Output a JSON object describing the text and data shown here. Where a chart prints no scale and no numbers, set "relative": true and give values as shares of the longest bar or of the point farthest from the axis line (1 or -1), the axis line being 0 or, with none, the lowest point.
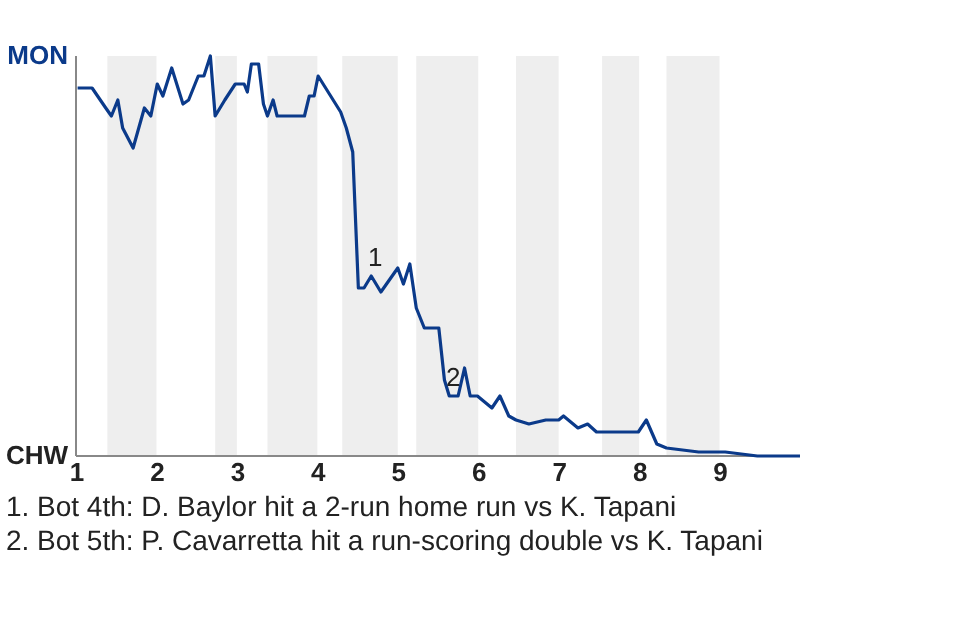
{
  "chart_data": {
    "type": "line",
    "relative": true,
    "xlim": [
      1,
      10
    ],
    "xticks": [
      1,
      2,
      3,
      4,
      5,
      6,
      7,
      8,
      9
    ],
    "marker": "none",
    "line_style": "solid",
    "series": [
      {
        "color": "#0b3a8a",
        "x": [
          1.02,
          1.2,
          1.37,
          1.44,
          1.52,
          1.58,
          1.71,
          1.85,
          1.93,
          2.01,
          2.08,
          2.19,
          2.33,
          2.4,
          2.52,
          2.59,
          2.67,
          2.73,
          2.85,
          2.98,
          3.09,
          3.13,
          3.18,
          3.27,
          3.33,
          3.38,
          3.45,
          3.5,
          3.84,
          3.9,
          3.96,
          4.01,
          4.29,
          4.36,
          4.44,
          4.51,
          4.58,
          4.67,
          4.79,
          5.0,
          5.07,
          5.15,
          5.23,
          5.33,
          5.51,
          5.58,
          5.64,
          5.75,
          5.83,
          5.9,
          5.99,
          6.17,
          6.27,
          6.38,
          6.47,
          6.63,
          6.84,
          7.0,
          7.06,
          7.24,
          7.36,
          7.47,
          7.56,
          7.77,
          7.99,
          8.09,
          8.22,
          8.34,
          8.74,
          8.95,
          9.07,
          9.47,
          10
        ],
        "values": [
          0.92,
          0.92,
          0.87,
          0.85,
          0.89,
          0.82,
          0.77,
          0.87,
          0.85,
          0.93,
          0.9,
          0.97,
          0.88,
          0.89,
          0.95,
          0.95,
          1,
          0.85,
          0.89,
          0.93,
          0.93,
          0.91,
          0.98,
          0.98,
          0.88,
          0.85,
          0.89,
          0.85,
          0.85,
          0.9,
          0.9,
          0.95,
          0.86,
          0.82,
          0.76,
          0.42,
          0.42,
          0.45,
          0.41,
          0.47,
          0.43,
          0.48,
          0.37,
          0.32,
          0.32,
          0.19,
          0.15,
          0.15,
          0.22,
          0.15,
          0.15,
          0.12,
          0.15,
          0.1,
          0.09,
          0.08,
          0.09,
          0.09,
          0.1,
          0.07,
          0.08,
          0.06,
          0.06,
          0.06,
          0.06,
          0.09,
          0.03,
          0.02,
          0.01,
          0.01,
          0.01,
          0,
          0
        ]
      }
    ],
    "bands": [
      {
        "axis": "x",
        "from": 1.39,
        "to": 2,
        "color": "#eeeeee"
      },
      {
        "axis": "x",
        "from": 2.73,
        "to": 3,
        "color": "#eeeeee"
      },
      {
        "axis": "x",
        "from": 3.38,
        "to": 4,
        "color": "#eeeeee"
      },
      {
        "axis": "x",
        "from": 4.31,
        "to": 5,
        "color": "#eeeeee"
      },
      {
        "axis": "x",
        "from": 5.23,
        "to": 6,
        "color": "#eeeeee"
      },
      {
        "axis": "x",
        "from": 6.47,
        "to": 7,
        "color": "#eeeeee"
      },
      {
        "axis": "x",
        "from": 7.54,
        "to": 8,
        "color": "#eeeeee"
      },
      {
        "axis": "x",
        "from": 8.34,
        "to": 9,
        "color": "#eeeeee"
      }
    ],
    "annotations": [
      "MON",
      "CHW",
      {
        "text": "1",
        "x": 4.67,
        "y": 0.45
      },
      {
        "text": "2",
        "x": 5.64,
        "y": 0.15
      },
      "1. Bot 4th: D. Baylor hit a 2-run home run vs K. Tapani",
      "2. Bot 5th: P. Cavarretta hit a run-scoring double vs K. Tapani"
    ]
  }
}
